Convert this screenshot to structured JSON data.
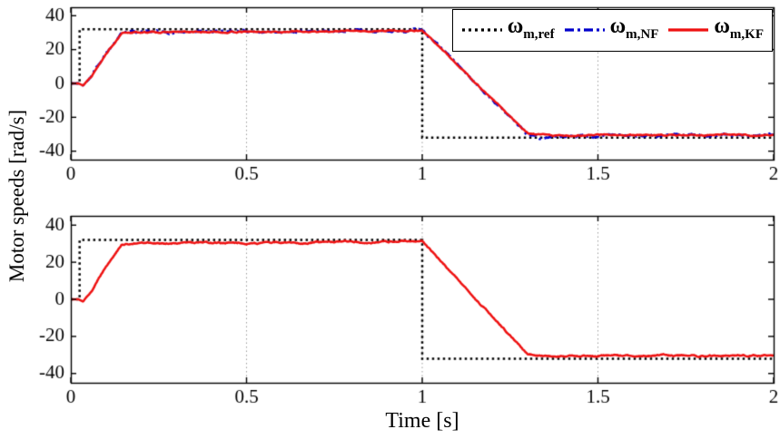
{
  "figure": {
    "xlabel": "Time [s]",
    "ylabel": "Motor speeds [rad/s]",
    "background": "#ffffff",
    "axis_color": "#000000",
    "grid_color": "#9a9a9a"
  },
  "legend": {
    "position": "top-right-inside-first-plot",
    "entries": [
      {
        "id": "ref",
        "base": "ω",
        "sub": "m,ref",
        "line_style": "dotted",
        "color": "#000000"
      },
      {
        "id": "nf",
        "base": "ω",
        "sub": "m,NF",
        "line_style": "dash-dot",
        "color": "#0000cc"
      },
      {
        "id": "kf",
        "base": "ω",
        "sub": "m,KF",
        "line_style": "solid",
        "color": "#ee1111"
      }
    ]
  },
  "chart_data": [
    {
      "type": "line",
      "subplot": "top",
      "title": "",
      "xlabel": "Time [s]",
      "ylabel": "Motor speeds [rad/s]",
      "xlim": [
        0,
        2
      ],
      "ylim": [
        -45,
        45
      ],
      "xticks": [
        "0",
        "0.5",
        "1",
        "1.5",
        "2"
      ],
      "xtick_values": [
        0,
        0.5,
        1,
        1.5,
        2
      ],
      "yticks": [
        -40,
        -20,
        0,
        20,
        40
      ],
      "grid_x": [
        0.5,
        1,
        1.5
      ],
      "grid_on": true,
      "series": [
        {
          "name": "wm-ref",
          "label": "ω_m,ref",
          "style": "dotted",
          "color": "#000000",
          "noise": 0,
          "breakpoints": [
            [
              0,
              0
            ],
            [
              0.025,
              0
            ],
            [
              0.025,
              32
            ],
            [
              1,
              32
            ],
            [
              1,
              -32
            ],
            [
              2,
              -32
            ]
          ]
        },
        {
          "name": "wm-NF",
          "label": "ω_m,NF",
          "style": "dashdot",
          "color": "#0000cc",
          "noise": 0.9,
          "seed": 7,
          "breakpoints": [
            [
              0,
              0
            ],
            [
              0.022,
              0
            ],
            [
              0.035,
              -1.2
            ],
            [
              0.06,
              5
            ],
            [
              0.1,
              18
            ],
            [
              0.145,
              29.3
            ],
            [
              0.18,
              30.2
            ],
            [
              0.5,
              30.4
            ],
            [
              0.9,
              31
            ],
            [
              1,
              31.5
            ],
            [
              1.3,
              -30.3
            ],
            [
              1.335,
              -32.6
            ],
            [
              1.38,
              -31.4
            ],
            [
              1.45,
              -30.9
            ],
            [
              2,
              -30.6
            ]
          ]
        },
        {
          "name": "wm-KF",
          "label": "ω_m,KF",
          "style": "solid",
          "color": "#ee1111",
          "noise": 0.55,
          "seed": 13,
          "breakpoints": [
            [
              0,
              0
            ],
            [
              0.022,
              0
            ],
            [
              0.035,
              -1.2
            ],
            [
              0.06,
              5
            ],
            [
              0.1,
              18
            ],
            [
              0.145,
              29.3
            ],
            [
              0.18,
              30.2
            ],
            [
              0.5,
              30.4
            ],
            [
              0.9,
              31
            ],
            [
              1,
              31.5
            ],
            [
              1.3,
              -29.8
            ],
            [
              1.37,
              -30.9
            ],
            [
              1.5,
              -30.5
            ],
            [
              2,
              -30.4
            ]
          ]
        }
      ]
    },
    {
      "type": "line",
      "subplot": "bottom",
      "title": "",
      "xlabel": "Time [s]",
      "ylabel": "Motor speeds [rad/s]",
      "xlim": [
        0,
        2
      ],
      "ylim": [
        -45,
        45
      ],
      "xticks": [
        "0",
        "0.5",
        "1",
        "1.5",
        "2"
      ],
      "xtick_values": [
        0,
        0.5,
        1,
        1.5,
        2
      ],
      "yticks": [
        -40,
        -20,
        0,
        20,
        40
      ],
      "grid_x": [
        0.5,
        1,
        1.5
      ],
      "grid_on": true,
      "series": [
        {
          "name": "wm-ref",
          "label": "ω_m,ref",
          "style": "dotted",
          "color": "#000000",
          "noise": 0,
          "breakpoints": [
            [
              0,
              0
            ],
            [
              0.025,
              0
            ],
            [
              0.025,
              32
            ],
            [
              1,
              32
            ],
            [
              1,
              -32
            ],
            [
              2,
              -32
            ]
          ]
        },
        {
          "name": "wm-KF",
          "label": "ω_m,KF",
          "style": "solid",
          "color": "#ee1111",
          "noise": 0.6,
          "seed": 29,
          "breakpoints": [
            [
              0,
              0
            ],
            [
              0.022,
              0
            ],
            [
              0.035,
              -1.2
            ],
            [
              0.06,
              5
            ],
            [
              0.1,
              18
            ],
            [
              0.145,
              29.3
            ],
            [
              0.18,
              30.2
            ],
            [
              0.5,
              30.4
            ],
            [
              0.9,
              31
            ],
            [
              1,
              31.5
            ],
            [
              1.3,
              -29.8
            ],
            [
              1.37,
              -30.9
            ],
            [
              1.5,
              -30.5
            ],
            [
              2,
              -30.4
            ]
          ]
        }
      ]
    }
  ]
}
